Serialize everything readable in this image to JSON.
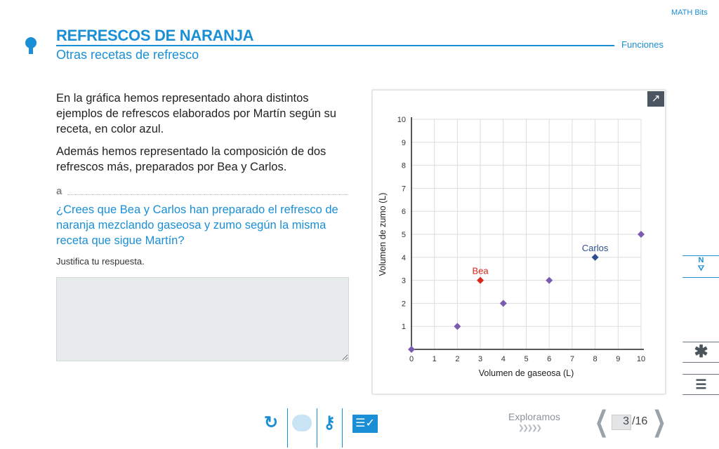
{
  "header": {
    "title": "REFRESCOS DE NARANJA",
    "subtitle": "Otras recetas de refresco",
    "section": "Funciones",
    "logo": "MATH Bits"
  },
  "content": {
    "p1": "En la gráfica hemos representado ahora distintos ejemplos de refrescos elaborados por Martín según su receta, en color azul.",
    "p2": "Además hemos representado la composición de dos refrescos más, preparados por Bea y Carlos.",
    "question_letter": "a",
    "question": "¿Crees que Bea y Carlos han preparado el refresco de naranja mezclando gaseosa y zumo según la misma receta que sigue Martín?",
    "instruction": "Justifica tu respuesta.",
    "answer_value": ""
  },
  "chart_data": {
    "type": "scatter",
    "xlabel": "Volumen de gaseosa (L)",
    "ylabel": "Volumen de zumo (L)",
    "xlim": [
      0,
      10
    ],
    "ylim": [
      0,
      10
    ],
    "grid": true,
    "xticks": [
      0,
      1,
      2,
      3,
      4,
      5,
      6,
      7,
      8,
      9,
      10
    ],
    "yticks": [
      1,
      2,
      3,
      4,
      5,
      6,
      7,
      8,
      9,
      10
    ],
    "series": [
      {
        "color": "#7b5bb0",
        "points": [
          [
            0,
            0
          ],
          [
            2,
            1
          ],
          [
            4,
            2
          ],
          [
            6,
            3
          ],
          [
            10,
            5
          ]
        ]
      },
      {
        "name": "Bea",
        "color": "#d8281c",
        "points": [
          [
            3,
            3
          ]
        ]
      },
      {
        "name": "Carlos",
        "color": "#2e4f8f",
        "points": [
          [
            8,
            4
          ]
        ]
      }
    ]
  },
  "footer": {
    "stage": "Exploramos",
    "page": "3",
    "total": "/16"
  },
  "icons": {
    "reset": "reset-icon",
    "comment": "comment-icon",
    "key": "key-icon",
    "checklist": "checklist-icon",
    "compass": "compass-icon",
    "asterisk": "asterisk-icon",
    "list": "list-icon",
    "expand": "expand-icon"
  },
  "colors": {
    "accent": "#1a8fd6"
  }
}
